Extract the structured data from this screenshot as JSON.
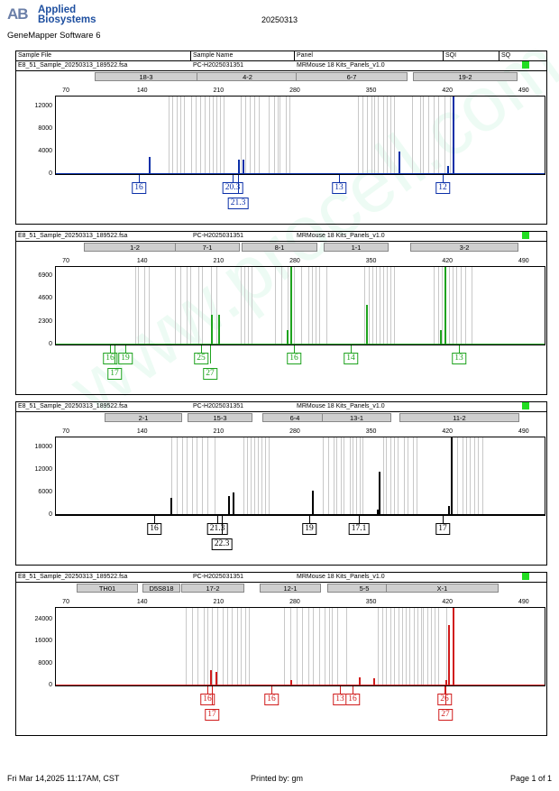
{
  "header": {
    "logo_mark": "AB",
    "brand_line1": "Applied",
    "brand_line2": "Biosystems",
    "software": "GeneMapper Software 6",
    "doc_title": "20250313"
  },
  "table_header": {
    "sample_file": "Sample File",
    "sample_name": "Sample Name",
    "panel": "Panel",
    "sqi": "SQI",
    "sq": "SQ"
  },
  "watermark": "www.procell.com.cn",
  "colors": {
    "blue": "#0a2fa8",
    "green": "#1ea31e",
    "black": "#000000",
    "red": "#d01c1c",
    "sq_ok": "#22dd22"
  },
  "panels": [
    {
      "sample_file": "E8_51_Sample_20250313_189522.fsa",
      "sample_name": "PC-H2025031351",
      "panel": "MRMouse 18 Kits_Panels_v1.0",
      "color": "blue",
      "markers": [
        "18-3",
        "4-2",
        "6-7",
        "19-2"
      ],
      "x_ticks": [
        "70",
        "140",
        "210",
        "280",
        "350",
        "420",
        "490"
      ],
      "y_ticks": [
        "12000",
        "8000",
        "4000",
        "0"
      ],
      "labels": [
        {
          "text": "16"
        },
        {
          "text": "20.3"
        },
        {
          "text": "21.3"
        },
        {
          "text": "13"
        },
        {
          "text": "12"
        }
      ]
    },
    {
      "sample_file": "E8_51_Sample_20250313_189522.fsa",
      "sample_name": "PC-H2025031351",
      "panel": "MRMouse 18 Kits_Panels_v1.0",
      "color": "green",
      "markers": [
        "1-2",
        "7-1",
        "8-1",
        "1-1",
        "3-2"
      ],
      "x_ticks": [
        "70",
        "140",
        "210",
        "280",
        "350",
        "420",
        "490"
      ],
      "y_ticks": [
        "6900",
        "4600",
        "2300",
        "0"
      ],
      "labels": [
        {
          "text": "16"
        },
        {
          "text": "19"
        },
        {
          "text": "17"
        },
        {
          "text": "25"
        },
        {
          "text": "27"
        },
        {
          "text": "16"
        },
        {
          "text": "14"
        },
        {
          "text": "13"
        }
      ]
    },
    {
      "sample_file": "E8_51_Sample_20250313_189522.fsa",
      "sample_name": "PC-H2025031351",
      "panel": "MRMouse 18 Kits_Panels_v1.0",
      "color": "black",
      "markers": [
        "2-1",
        "15-3",
        "6-4",
        "13-1",
        "11-2"
      ],
      "x_ticks": [
        "70",
        "140",
        "210",
        "280",
        "350",
        "420",
        "490"
      ],
      "y_ticks": [
        "18000",
        "12000",
        "6000",
        "0"
      ],
      "labels": [
        {
          "text": "16"
        },
        {
          "text": "21.3"
        },
        {
          "text": "22.3"
        },
        {
          "text": "19"
        },
        {
          "text": "17.1"
        },
        {
          "text": "17"
        }
      ]
    },
    {
      "sample_file": "E8_51_Sample_20250313_189522.fsa",
      "sample_name": "PC-H2025031351",
      "panel": "MRMouse 18 Kits_Panels_v1.0",
      "color": "red",
      "markers": [
        "TH01",
        "D5S818",
        "17-2",
        "12-1",
        "5-5",
        "X-1"
      ],
      "x_ticks": [
        "70",
        "140",
        "210",
        "280",
        "350",
        "420",
        "490"
      ],
      "y_ticks": [
        "24000",
        "16000",
        "8000",
        "0"
      ],
      "labels": [
        {
          "text": "16"
        },
        {
          "text": "17"
        },
        {
          "text": "16"
        },
        {
          "text": "13"
        },
        {
          "text": "16"
        },
        {
          "text": "26"
        },
        {
          "text": "27"
        }
      ]
    }
  ],
  "chart_data": [
    {
      "type": "line",
      "title": "",
      "xlabel": "",
      "ylabel": "",
      "xlim": [
        60,
        510
      ],
      "ylim": [
        0,
        14000
      ],
      "series": [
        {
          "name": "",
          "peaks": [
            {
              "x": 146,
              "y": 3000
            },
            {
              "x": 228,
              "y": 2500
            },
            {
              "x": 232,
              "y": 2500
            },
            {
              "x": 375,
              "y": 4000
            },
            {
              "x": 420,
              "y": 1500
            },
            {
              "x": 425,
              "y": 14000
            }
          ]
        }
      ]
    },
    {
      "type": "line",
      "title": "",
      "xlabel": "",
      "ylabel": "",
      "xlim": [
        60,
        510
      ],
      "ylim": [
        0,
        8000
      ],
      "series": [
        {
          "name": "",
          "peaks": [
            {
              "x": 203,
              "y": 3000
            },
            {
              "x": 210,
              "y": 3000
            },
            {
              "x": 273,
              "y": 1500
            },
            {
              "x": 276,
              "y": 8000
            },
            {
              "x": 345,
              "y": 4000
            },
            {
              "x": 413,
              "y": 1500
            },
            {
              "x": 417,
              "y": 8000
            }
          ]
        }
      ]
    },
    {
      "type": "line",
      "title": "",
      "xlabel": "",
      "ylabel": "",
      "xlim": [
        60,
        510
      ],
      "ylim": [
        0,
        21000
      ],
      "series": [
        {
          "name": "",
          "peaks": [
            {
              "x": 166,
              "y": 4500
            },
            {
              "x": 219,
              "y": 5000
            },
            {
              "x": 223,
              "y": 6000
            },
            {
              "x": 296,
              "y": 6500
            },
            {
              "x": 355,
              "y": 1500
            },
            {
              "x": 357,
              "y": 11500
            },
            {
              "x": 421,
              "y": 2500
            },
            {
              "x": 423,
              "y": 21000
            }
          ]
        }
      ]
    },
    {
      "type": "line",
      "title": "",
      "xlabel": "",
      "ylabel": "",
      "xlim": [
        60,
        510
      ],
      "ylim": [
        0,
        29000
      ],
      "series": [
        {
          "name": "",
          "peaks": [
            {
              "x": 202,
              "y": 5500
            },
            {
              "x": 207,
              "y": 5000
            },
            {
              "x": 276,
              "y": 2000
            },
            {
              "x": 339,
              "y": 3000
            },
            {
              "x": 352,
              "y": 2800
            },
            {
              "x": 418,
              "y": 2000
            },
            {
              "x": 421,
              "y": 22000
            },
            {
              "x": 425,
              "y": 29000
            }
          ]
        }
      ]
    }
  ],
  "footer": {
    "date": "Fri Mar 14,2025 11:17AM, CST",
    "printed_by": "Printed by: gm",
    "page": "Page 1 of 1"
  }
}
